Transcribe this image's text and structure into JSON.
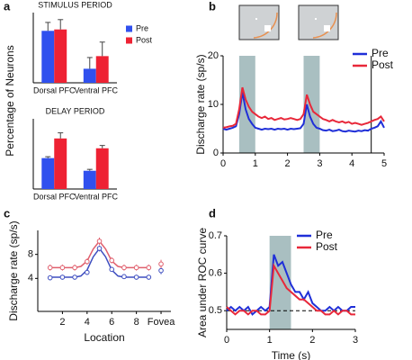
{
  "panel_labels": [
    "a",
    "b",
    "c",
    "d"
  ],
  "chart_data": [
    {
      "type": "bar",
      "title": "STIMULUS PERIOD",
      "y_label": "Percentage of Neurons",
      "categories": [
        "Dorsal PFC",
        "Ventral PFC"
      ],
      "series": [
        {
          "name": "Pre",
          "color": "#3050ee",
          "values": [
            37,
            10
          ],
          "errors": [
            6,
            8
          ]
        },
        {
          "name": "Post",
          "color": "#ee2233",
          "values": [
            38,
            19
          ],
          "errors": [
            7,
            10
          ]
        }
      ],
      "ylim": [
        0,
        50
      ],
      "legend": "upper right"
    },
    {
      "type": "bar",
      "title": "DELAY PERIOD",
      "categories": [
        "Dorsal PFC",
        "Ventral PFC"
      ],
      "series": [
        {
          "color": "#3050ee",
          "values": [
            22,
            13
          ],
          "errors": [
            1,
            1
          ]
        },
        {
          "color": "#ee2233",
          "values": [
            36,
            29
          ],
          "errors": [
            4,
            2
          ]
        }
      ],
      "ylim": [
        0,
        50
      ]
    },
    {
      "type": "line",
      "y_label": "Discharge rate (sp/s)",
      "x": [
        0,
        0.1,
        0.2,
        0.3,
        0.4,
        0.5,
        0.6,
        0.7,
        0.8,
        0.9,
        1,
        1.1,
        1.2,
        1.3,
        1.4,
        1.5,
        1.6,
        1.7,
        1.8,
        1.9,
        2,
        2.1,
        2.2,
        2.3,
        2.4,
        2.5,
        2.6,
        2.7,
        2.8,
        2.9,
        3,
        3.1,
        3.2,
        3.3,
        3.4,
        3.5,
        3.6,
        3.7,
        3.8,
        3.9,
        4,
        4.1,
        4.2,
        4.3,
        4.4,
        4.5,
        4.6,
        4.7,
        4.8,
        4.9,
        5
      ],
      "series": [
        {
          "name": "Pre",
          "color": "#1f2fd8",
          "values": [
            5.0,
            4.8,
            5.0,
            5.2,
            5.5,
            8,
            12.5,
            9,
            7,
            6,
            5.2,
            5,
            4.8,
            5,
            4.9,
            5,
            4.8,
            5,
            4.9,
            5,
            4.8,
            5,
            4.9,
            5,
            5.1,
            6,
            10,
            7.5,
            6,
            5.2,
            5,
            4.7,
            4.6,
            4.8,
            4.5,
            4.6,
            4.8,
            4.5,
            4.4,
            4.6,
            4.5,
            4.4,
            4.6,
            4.5,
            4.7,
            4.6,
            5,
            5.2,
            5.5,
            6.5,
            5.2
          ]
        },
        {
          "name": "Post",
          "color": "#e8283a",
          "values": [
            5.2,
            5.3,
            5.5,
            5.6,
            6,
            9,
            13.5,
            11,
            9.5,
            8.5,
            8,
            7.5,
            7.2,
            7.5,
            7,
            7.2,
            6.8,
            7,
            7.2,
            6.9,
            7,
            7.2,
            7,
            6.8,
            7,
            8,
            12,
            10,
            8.5,
            8,
            7.5,
            7,
            6.8,
            6.5,
            6.8,
            6.5,
            6.3,
            6.5,
            6.2,
            6.4,
            6,
            6.2,
            6,
            5.8,
            6,
            6.2,
            6.5,
            6.8,
            7,
            7.5,
            6.5
          ]
        }
      ],
      "xlim": [
        0,
        5
      ],
      "ylim": [
        0,
        20
      ],
      "xticks": [
        0,
        1,
        2,
        3,
        4,
        5
      ],
      "yticks": [
        0,
        10,
        20
      ],
      "shaded": [
        [
          0.5,
          1
        ],
        [
          2.5,
          3
        ]
      ],
      "vlines": [
        4.6
      ],
      "legend": "upper right"
    },
    {
      "type": "line",
      "markers": true,
      "x_label": "Location",
      "y_label": "Discharge rate (sp/s)",
      "x": [
        1,
        2,
        3,
        4,
        5,
        6,
        7,
        8,
        9,
        10
      ],
      "fit_x": [
        1,
        1.5,
        2,
        2.5,
        3,
        3.5,
        4,
        4.5,
        5,
        5.5,
        6,
        6.5,
        7,
        7.5,
        8,
        8.5,
        9
      ],
      "series": [
        {
          "color": "#3f4fc0",
          "values": [
            4.1,
            4.2,
            4.2,
            5.0,
            9.0,
            5.5,
            4.3,
            4.2,
            4.2,
            5.3
          ],
          "errors": [
            0.4,
            0.4,
            0.4,
            0.4,
            0.5,
            0.4,
            0.4,
            0.4,
            0.4,
            0.6
          ],
          "fit": [
            4.2,
            4.2,
            4.2,
            4.2,
            4.2,
            4.4,
            5.4,
            7.6,
            9.0,
            7.6,
            5.4,
            4.4,
            4.2,
            4.2,
            4.2,
            4.2,
            4.2
          ]
        },
        {
          "color": "#e0606e",
          "values": [
            5.8,
            5.8,
            5.8,
            6.8,
            10.2,
            7.0,
            5.8,
            5.8,
            5.8,
            6.4
          ],
          "errors": [
            0.5,
            0.5,
            0.5,
            0.5,
            0.6,
            0.5,
            0.5,
            0.5,
            0.5,
            0.7
          ],
          "fit": [
            5.8,
            5.8,
            5.8,
            5.8,
            5.8,
            6.0,
            6.9,
            8.9,
            10.2,
            8.9,
            6.9,
            6.0,
            5.8,
            5.8,
            5.8,
            5.8,
            5.8
          ]
        }
      ],
      "xlim": [
        0,
        10.8
      ],
      "ylim": [
        -1.5,
        12
      ],
      "xticks": [
        2,
        4,
        6,
        8,
        {
          "value": 10,
          "label": "Fovea"
        }
      ],
      "yticks": [
        4,
        8
      ]
    },
    {
      "type": "line",
      "x_label": "Time (s)",
      "y_label": "Area under ROC curve",
      "x": [
        0,
        0.1,
        0.2,
        0.3,
        0.4,
        0.5,
        0.6,
        0.7,
        0.8,
        0.9,
        1,
        1.1,
        1.2,
        1.3,
        1.4,
        1.5,
        1.6,
        1.7,
        1.8,
        1.9,
        2,
        2.1,
        2.2,
        2.3,
        2.4,
        2.5,
        2.6,
        2.7,
        2.8,
        2.9,
        3
      ],
      "series": [
        {
          "name": "Pre",
          "color": "#1f2fd8",
          "values": [
            0.5,
            0.51,
            0.5,
            0.51,
            0.5,
            0.51,
            0.49,
            0.5,
            0.51,
            0.5,
            0.51,
            0.65,
            0.62,
            0.63,
            0.6,
            0.57,
            0.55,
            0.55,
            0.53,
            0.55,
            0.52,
            0.51,
            0.5,
            0.5,
            0.51,
            0.5,
            0.51,
            0.5,
            0.5,
            0.51,
            0.51
          ]
        },
        {
          "name": "Post",
          "color": "#e8283a",
          "values": [
            0.51,
            0.5,
            0.49,
            0.5,
            0.5,
            0.49,
            0.5,
            0.5,
            0.49,
            0.49,
            0.5,
            0.62,
            0.6,
            0.58,
            0.56,
            0.55,
            0.54,
            0.53,
            0.53,
            0.52,
            0.51,
            0.5,
            0.5,
            0.49,
            0.49,
            0.5,
            0.49,
            0.5,
            0.5,
            0.49,
            0.49
          ]
        }
      ],
      "xlim": [
        0,
        3
      ],
      "ylim": [
        0.45,
        0.7
      ],
      "xticks": [
        0,
        1,
        2,
        3
      ],
      "yticks": [
        0.5,
        0.6,
        0.7
      ],
      "shaded": [
        [
          1,
          1.5
        ]
      ],
      "hlines": [
        0.5
      ],
      "legend": "upper right"
    }
  ]
}
